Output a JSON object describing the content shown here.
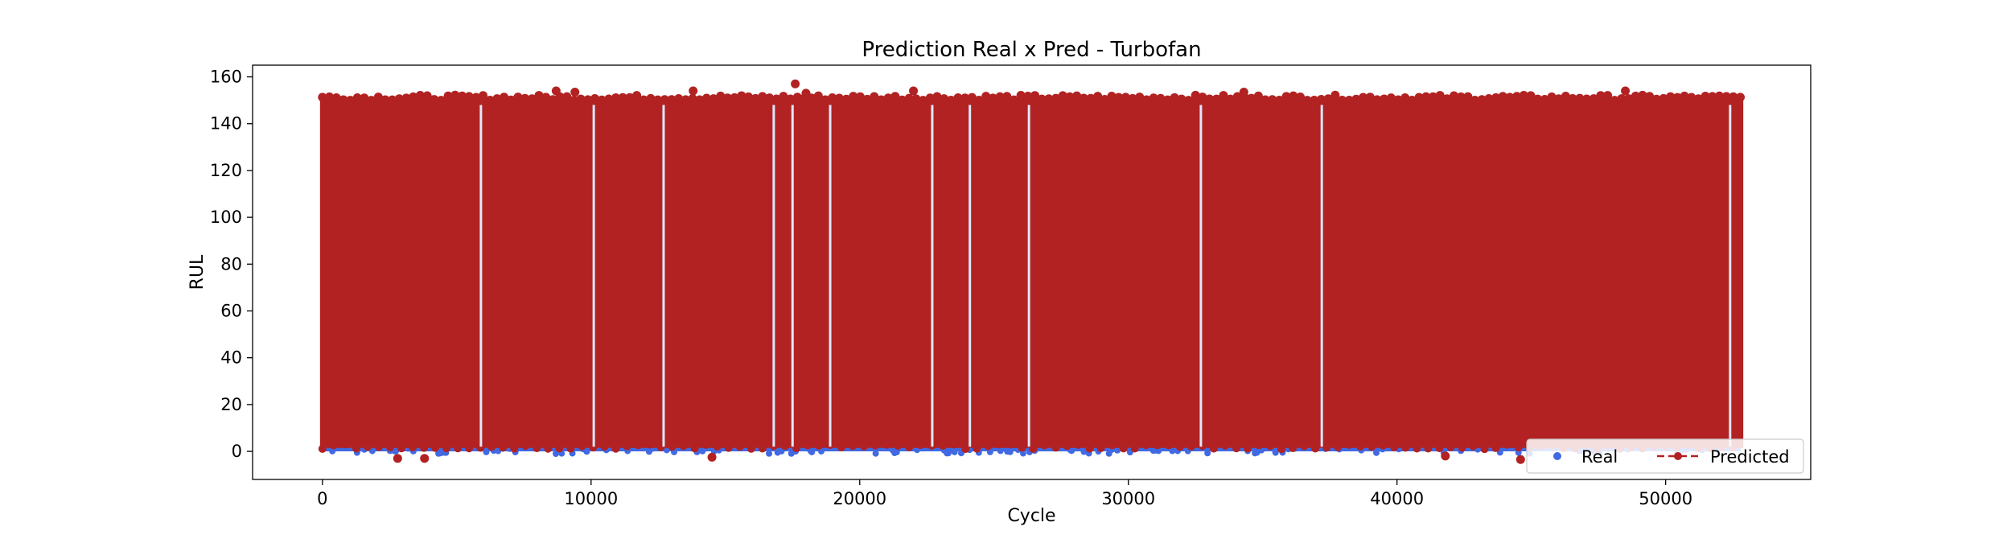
{
  "chart_data": {
    "type": "scatter",
    "title": "Prediction Real x Pred - Turbofan",
    "xlabel": "Cycle",
    "ylabel": "RUL",
    "xlim": [
      -2600,
      55400
    ],
    "ylim": [
      -12,
      165
    ],
    "x_ticks": [
      0,
      10000,
      20000,
      30000,
      40000,
      50000
    ],
    "x_tick_labels": [
      "0",
      "10000",
      "20000",
      "30000",
      "40000",
      "50000"
    ],
    "y_ticks": [
      0,
      20,
      40,
      60,
      80,
      100,
      120,
      140,
      160
    ],
    "y_tick_labels": [
      "0",
      "20",
      "40",
      "60",
      "80",
      "100",
      "120",
      "140",
      "160"
    ],
    "grid": false,
    "legend": {
      "position": "bottom-right"
    },
    "x_range_of_data": [
      0,
      52800
    ],
    "series": [
      {
        "name": "Real",
        "marker": "circle",
        "linestyle": "none",
        "color": "#4169e1",
        "y_range": [
          0,
          150
        ],
        "description_values": {
          "min": 0,
          "max": 150
        }
      },
      {
        "name": "Predicted",
        "marker": "circle",
        "linestyle": "dashed",
        "color": "#b22222",
        "y_range": [
          -3,
          157
        ],
        "description_values": {
          "min": -3,
          "max": 157
        },
        "outliers": [
          {
            "x": 17600,
            "y": 157
          },
          {
            "x": 18000,
            "y": 153
          },
          {
            "x": 13800,
            "y": 154
          },
          {
            "x": 8700,
            "y": 154
          },
          {
            "x": 9400,
            "y": 153.5
          },
          {
            "x": 22000,
            "y": 154
          },
          {
            "x": 48500,
            "y": 154
          },
          {
            "x": 34300,
            "y": 153.5
          },
          {
            "x": 2800,
            "y": -3
          },
          {
            "x": 3800,
            "y": -3
          },
          {
            "x": 14500,
            "y": -2.5
          },
          {
            "x": 44600,
            "y": -3.5
          },
          {
            "x": 41800,
            "y": -2
          }
        ],
        "gaps_x": [
          5900,
          10100,
          12700,
          16800,
          17500,
          18900,
          22700,
          24100,
          26300,
          32700,
          37200,
          52400
        ]
      }
    ]
  }
}
